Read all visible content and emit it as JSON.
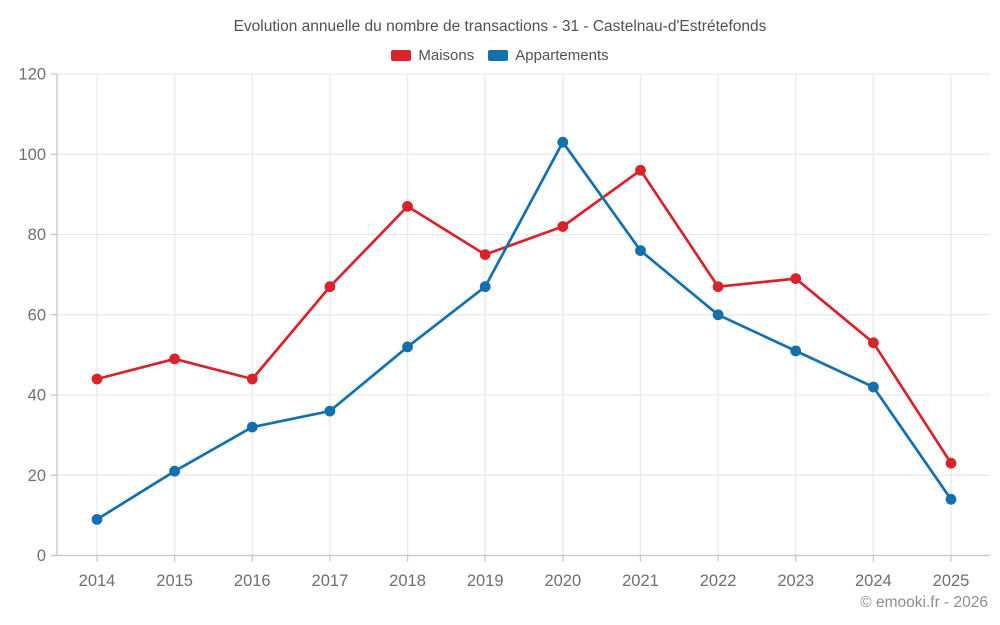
{
  "chart_data": {
    "type": "line",
    "title": "Evolution annuelle du nombre de transactions - 31 - Castelnau-d'Estrétefonds",
    "categories": [
      "2014",
      "2015",
      "2016",
      "2017",
      "2018",
      "2019",
      "2020",
      "2021",
      "2022",
      "2023",
      "2024",
      "2025"
    ],
    "series": [
      {
        "name": "Maisons",
        "color": "#d8232a",
        "values": [
          44,
          49,
          44,
          67,
          87,
          75,
          82,
          96,
          67,
          69,
          53,
          23
        ]
      },
      {
        "name": "Appartements",
        "color": "#1370af",
        "values": [
          9,
          21,
          32,
          36,
          52,
          67,
          103,
          76,
          60,
          51,
          42,
          14
        ]
      }
    ],
    "xlabel": "",
    "ylabel": "",
    "ylim": [
      0,
      120
    ],
    "ytick_step": 20,
    "grid": true,
    "legend_position": "top",
    "marker": "circle",
    "footer": "© emooki.fr - 2026",
    "style": {
      "grid_color": "#e9e9e9",
      "axis_color": "#c7c7c7",
      "tick_color": "#c7c7c7",
      "tick_label_color": "#6f6f6f",
      "title_color": "#4e5256",
      "footer_color": "#8d8d8d",
      "background": "#ffffff"
    }
  }
}
